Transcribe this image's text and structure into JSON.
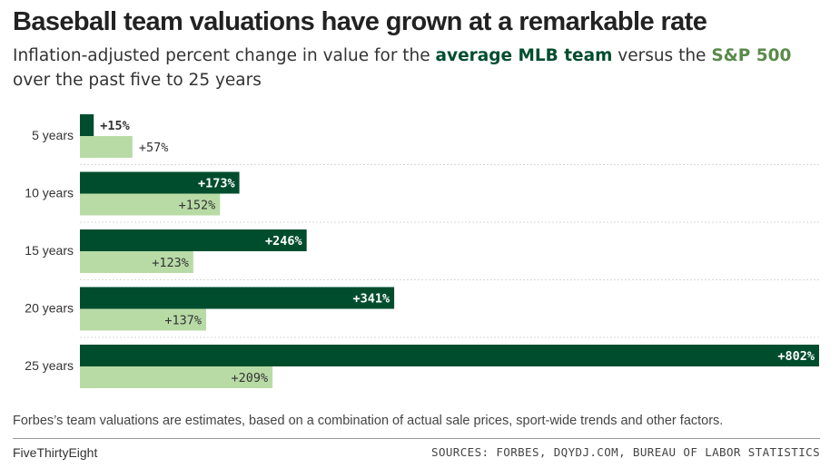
{
  "header": {
    "title": "Baseball team valuations have grown at a remarkable rate",
    "subtitle_pre": "Inflation-adjusted percent change in value for the ",
    "subtitle_mlb": "average MLB team",
    "subtitle_mid": " versus the ",
    "subtitle_sp": "S&P 500",
    "subtitle_post": " over the past five to 25 years"
  },
  "colors": {
    "mlb": "#004d2e",
    "sp500": "#b8dba6",
    "gridline": "#d9d9d9",
    "label_dark": "#333333",
    "label_light": "#ffffff"
  },
  "chart_data": {
    "type": "bar",
    "orientation": "horizontal",
    "categories": [
      "5 years",
      "10 years",
      "15 years",
      "20 years",
      "25 years"
    ],
    "series": [
      {
        "name": "average MLB team",
        "values": [
          15,
          173,
          246,
          341,
          802
        ],
        "labels": [
          "+15%",
          "+173%",
          "+246%",
          "+341%",
          "+802%"
        ]
      },
      {
        "name": "S&P 500",
        "values": [
          57,
          152,
          123,
          137,
          209
        ],
        "labels": [
          "+57%",
          "+152%",
          "+123%",
          "+137%",
          "+209%"
        ]
      }
    ],
    "xlim": [
      0,
      802
    ],
    "grid": false,
    "legend": "none"
  },
  "footer": {
    "note": "Forbes’s team valuations are estimates, based on a combination of actual sale prices, sport-wide trends and other factors.",
    "brand": "FiveThirtyEight",
    "sources": "SOURCES: FORBES, DQYDJ.COM, BUREAU OF LABOR STATISTICS"
  }
}
